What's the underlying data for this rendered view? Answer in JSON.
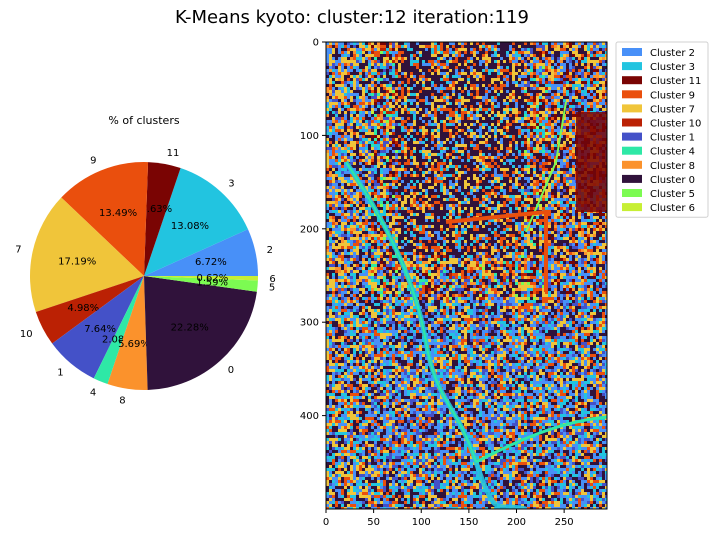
{
  "figure": {
    "title": "K-Means kyoto: cluster:12 iteration:119"
  },
  "chart_data": [
    {
      "type": "pie",
      "title": "% of clusters",
      "slices": [
        {
          "label": "2",
          "value": 6.72,
          "pct_label": "6.72%",
          "color": "#4890f8"
        },
        {
          "label": "3",
          "value": 13.08,
          "pct_label": "13.08%",
          "color": "#22c4e0"
        },
        {
          "label": "11",
          "value": 4.63,
          "pct_label": "4.63%",
          "color": "#7a0403"
        },
        {
          "label": "9",
          "value": 13.49,
          "pct_label": "13.49%",
          "color": "#ea4f0d"
        },
        {
          "label": "7",
          "value": 17.19,
          "pct_label": "17.19%",
          "color": "#f0c53a"
        },
        {
          "label": "10",
          "value": 4.98,
          "pct_label": "4.98%",
          "color": "#bb2104"
        },
        {
          "label": "1",
          "value": 7.64,
          "pct_label": "7.64%",
          "color": "#4451c8"
        },
        {
          "label": "4",
          "value": 2.08,
          "pct_label": "2.08%",
          "color": "#2ee8a6"
        },
        {
          "label": "8",
          "value": 5.69,
          "pct_label": "5.69%",
          "color": "#fb922c"
        },
        {
          "label": "0",
          "value": 22.28,
          "pct_label": "22.28%",
          "color": "#30123b"
        },
        {
          "label": "5",
          "value": 1.59,
          "pct_label": "1.59%",
          "color": "#7cfb52"
        },
        {
          "label": "6",
          "value": 0.62,
          "pct_label": "0.62%",
          "color": "#c7ef34"
        }
      ]
    },
    {
      "type": "heatmap",
      "title": "",
      "xlabel": "",
      "ylabel": "",
      "xlim": [
        0,
        295
      ],
      "ylim": [
        500,
        0
      ],
      "xticks": [
        0,
        50,
        100,
        150,
        200,
        250
      ],
      "yticks": [
        0,
        100,
        200,
        300,
        400
      ],
      "legend_position": "outside-top-right",
      "legend": [
        {
          "label": "Cluster 2",
          "color": "#4890f8"
        },
        {
          "label": "Cluster 3",
          "color": "#22c4e0"
        },
        {
          "label": "Cluster 11",
          "color": "#7a0403"
        },
        {
          "label": "Cluster 9",
          "color": "#ea4f0d"
        },
        {
          "label": "Cluster 7",
          "color": "#f0c53a"
        },
        {
          "label": "Cluster 10",
          "color": "#bb2104"
        },
        {
          "label": "Cluster 1",
          "color": "#4451c8"
        },
        {
          "label": "Cluster 4",
          "color": "#2ee8a6"
        },
        {
          "label": "Cluster 8",
          "color": "#fb922c"
        },
        {
          "label": "Cluster 0",
          "color": "#30123b"
        },
        {
          "label": "Cluster 5",
          "color": "#7cfb52"
        },
        {
          "label": "Cluster 6",
          "color": "#c7ef34"
        }
      ]
    }
  ]
}
